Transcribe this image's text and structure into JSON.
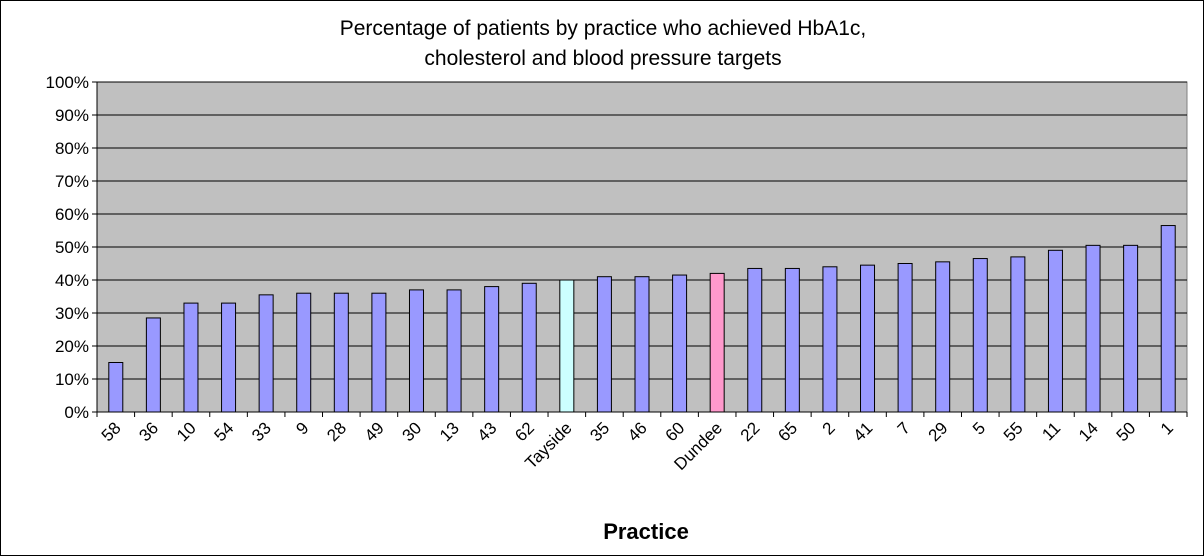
{
  "chart_data": {
    "type": "bar",
    "title_lines": [
      "Percentage of patients by practice who achieved HbA1c,",
      "cholesterol and blood pressure targets"
    ],
    "xlabel": "Practice",
    "ylabel": "",
    "ylim": [
      0,
      100
    ],
    "yticks": [
      "0%",
      "10%",
      "20%",
      "30%",
      "40%",
      "50%",
      "60%",
      "70%",
      "80%",
      "90%",
      "100%"
    ],
    "grid": true,
    "legend": "none",
    "categories": [
      "58",
      "36",
      "10",
      "54",
      "33",
      "9",
      "28",
      "49",
      "30",
      "13",
      "43",
      "62",
      "Tayside",
      "35",
      "46",
      "60",
      "Dundee",
      "22",
      "65",
      "2",
      "41",
      "7",
      "29",
      "5",
      "55",
      "11",
      "14",
      "50",
      "1"
    ],
    "values": [
      15,
      28.5,
      33,
      33,
      35.5,
      36,
      36,
      36,
      37,
      37,
      38,
      39,
      40,
      41,
      41,
      41.5,
      42,
      43.5,
      43.5,
      44,
      44.5,
      45,
      45.5,
      46.5,
      47,
      49,
      50.5,
      50.5,
      56.5
    ],
    "colors": {
      "default": "#9999ff",
      "Tayside": "#ccffff",
      "Dundee": "#ff99cc",
      "plot_background": "#c0c0c0"
    }
  }
}
